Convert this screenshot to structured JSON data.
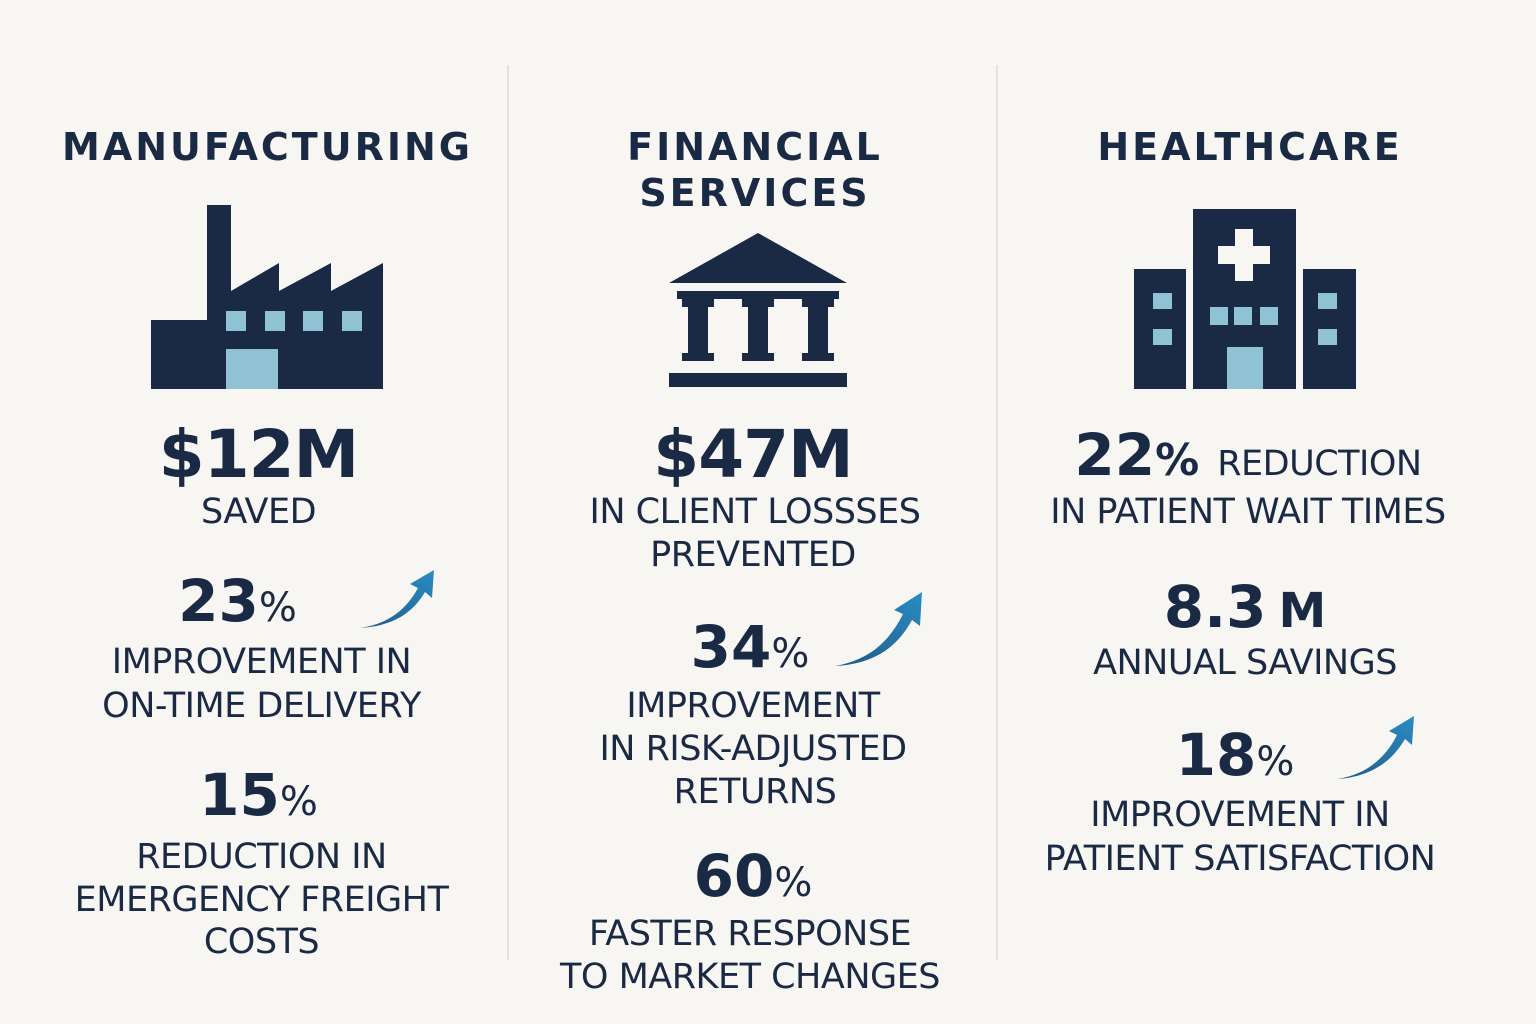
{
  "manufacturing": {
    "title": "MANUFACTURING",
    "icon": "factory-icon",
    "stat1_value": "$12M",
    "stat1_label": "SAVED",
    "stat2_value": "23",
    "stat2_unit": "%",
    "stat2_label_1": "IMPROVEMENT IN",
    "stat2_label_2": "ON-TIME DELIVERY",
    "stat3_value": "15",
    "stat3_unit": "%",
    "stat3_label_1": "REDUCTION IN",
    "stat3_label_2": "EMERGENCY FREIGHT",
    "stat3_label_3": "COSTS"
  },
  "financial": {
    "title_1": "FINANCIAL",
    "title_2": "SERVICES",
    "icon": "bank-icon",
    "stat1_value": "$47M",
    "stat1_label_1": "IN CLIENT LOSSSES",
    "stat1_label_2": "PREVENTED",
    "stat2_value": "34",
    "stat2_unit": "%",
    "stat2_label_1": "IMPROVEMENT",
    "stat2_label_2": "IN RISK-ADJUSTED",
    "stat2_label_3": "RETURNS",
    "stat3_value": "60",
    "stat3_unit": "%",
    "stat3_label_1": "FASTER RESPONSE",
    "stat3_label_2": "TO MARKET CHANGES"
  },
  "healthcare": {
    "title": "HEALTHCARE",
    "icon": "hospital-icon",
    "stat1_value": "22",
    "stat1_unit": "%",
    "stat1_label_inline": "REDUCTION",
    "stat1_label_2": "IN PATIENT WAIT TIMES",
    "stat2_value": "8.3",
    "stat2_unit": "M",
    "stat2_label": "ANNUAL SAVINGS",
    "stat3_value": "18",
    "stat3_unit": "%",
    "stat3_label_1": "IMPROVEMENT IN",
    "stat3_label_2": "PATIENT SATISFACTION"
  },
  "colors": {
    "navy": "#1b2a44",
    "light_blue": "#8fc3d3",
    "arrow_blue": "#2a8cc4",
    "background": "#f8f6f2"
  }
}
